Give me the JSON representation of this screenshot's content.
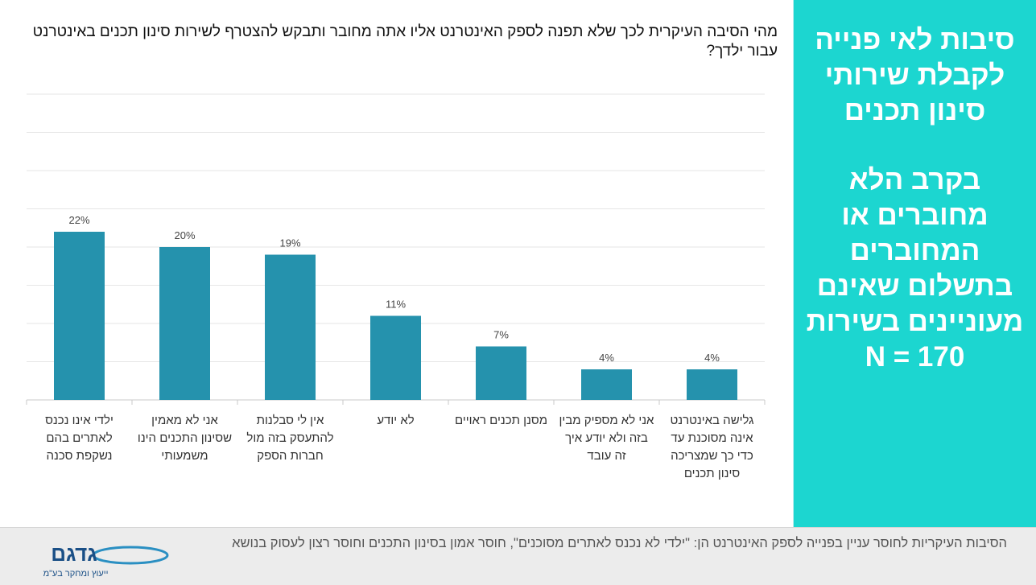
{
  "question": "מהי הסיבה העיקרית לכך שלא תפנה לספק האינטרנט אליו אתה מחובר ותבקש להצטרף לשירות סינון תכנים באינטרנט עבור ילדך?",
  "side_panel": {
    "title_lines": [
      "סיבות לאי פנייה",
      "לקבלת שירותי",
      "סינון תכנים"
    ],
    "subtitle_lines": [
      "בקרב הלא",
      "מחוברים או",
      "המחוברים",
      "בתשלום שאינם",
      "מעוניינים בשירות",
      "N = 170"
    ],
    "background": "#1cd6d0"
  },
  "chart_data": {
    "type": "bar",
    "categories": [
      [
        "ילדי אינו נכנס",
        "לאתרים בהם",
        "נשקפת סכנה"
      ],
      [
        "אני לא מאמין",
        "שסינון התכנים הינו",
        "משמעותי"
      ],
      [
        "אין לי סבלנות",
        "להתעסק בזה מול",
        "חברות הספק"
      ],
      [
        "לא יודע"
      ],
      [
        "מסנן תכנים ראויים"
      ],
      [
        "אני לא מספיק מבין",
        "בזה ולא יודע איך",
        "זה עובד"
      ],
      [
        "גלישה באינטרנט",
        "אינה מסוכנת עד",
        "כדי כך שמצריכה",
        "סינון תכנים"
      ]
    ],
    "values": [
      22,
      20,
      19,
      11,
      7,
      4,
      4
    ],
    "data_labels": [
      "22%",
      "20%",
      "19%",
      "11%",
      "7%",
      "4%",
      "4%"
    ],
    "ylim": [
      0,
      40
    ],
    "grid": true,
    "bar_color": "#2592ad"
  },
  "footer": {
    "text": "הסיבות העיקריות לחוסר עניין בפנייה לספק האינטרנט הן: \"ילדי לא נכנס לאתרים מסוכנים\", חוסר אמון בסינון התכנים וחוסר רצון לעסוק בנושא",
    "logo_text": "גדגם",
    "logo_tagline": "ייעוץ ומחקר בע\"מ"
  }
}
